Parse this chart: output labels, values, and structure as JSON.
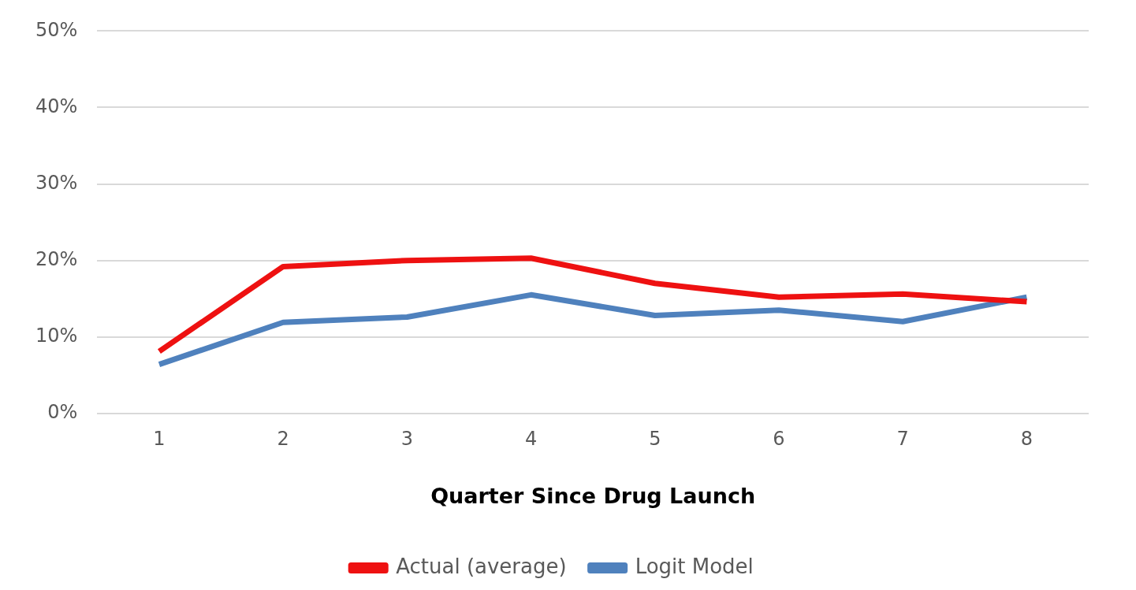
{
  "chart_data": {
    "type": "line",
    "xlabel": "Quarter Since Drug Launch",
    "categories": [
      "1",
      "2",
      "3",
      "4",
      "5",
      "6",
      "7",
      "8"
    ],
    "series": [
      {
        "name": "Actual (average)",
        "color": "#ee1111",
        "values": [
          8.1,
          19.2,
          20.0,
          20.3,
          17.0,
          15.2,
          15.6,
          14.6
        ]
      },
      {
        "name": "Logit Model",
        "color": "#4f81bd",
        "values": [
          6.4,
          11.9,
          12.6,
          15.5,
          12.8,
          13.5,
          12.0,
          15.2
        ]
      }
    ],
    "ylim": [
      0,
      50
    ],
    "yticks": [
      {
        "value": 0,
        "label": "0%"
      },
      {
        "value": 10,
        "label": "10%"
      },
      {
        "value": 20,
        "label": "20%"
      },
      {
        "value": 30,
        "label": "30%"
      },
      {
        "value": 40,
        "label": "40%"
      },
      {
        "value": 50,
        "label": "50%"
      }
    ],
    "grid": "y",
    "legend": "bottom",
    "marker": "none",
    "line_style": "solid"
  }
}
